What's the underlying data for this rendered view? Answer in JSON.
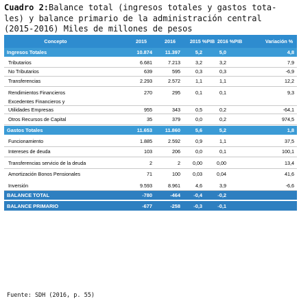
{
  "title": {
    "bold": "Cuadro 2:",
    "text": "Balance total (ingresos totales y gastos tota-les) y balance primario de la administración central (2015-2016) Miles de millones de pesos"
  },
  "header": {
    "concepto": "Concepto",
    "y2015": "2015",
    "y2016": "2016",
    "pib2015": "2015 %PIB",
    "pib2016": "2016 %PIB",
    "variacion": "Variación %"
  },
  "rows": [
    {
      "type": "sec",
      "label": "Ingresos Totales",
      "v": [
        "10.874",
        "11.397",
        "5,2",
        "5,0",
        "4,8"
      ]
    },
    {
      "type": "item",
      "label": "Tributarios",
      "v": [
        "6.681",
        "7.213",
        "3,2",
        "3,2",
        "7,9"
      ]
    },
    {
      "type": "item",
      "label": "No Tributarios",
      "v": [
        "639",
        "595",
        "0,3",
        "0,3",
        "-6,9"
      ]
    },
    {
      "type": "item",
      "label": "Transferencias",
      "v": [
        "2.293",
        "2.572",
        "1,1",
        "1,1",
        "12,2"
      ]
    },
    {
      "type": "item",
      "label": "Rendimientos Financieros",
      "v": [
        "270",
        "295",
        "0,1",
        "0,1",
        "9,3"
      ]
    },
    {
      "type": "item",
      "label": "Excedentes Financieros y",
      "v": [
        "",
        "",
        "",
        "",
        ""
      ]
    },
    {
      "type": "item",
      "label": "Utilidades Empresas",
      "v": [
        "955",
        "343",
        "0,5",
        "0,2",
        "-64,1"
      ]
    },
    {
      "type": "item",
      "label": "Otros Recursos de Capital",
      "v": [
        "35",
        "379",
        "0,0",
        "0,2",
        "974,5"
      ]
    },
    {
      "type": "sec",
      "label": "Gastos Totales",
      "v": [
        "11.653",
        "11.860",
        "5,6",
        "5,2",
        "1,8"
      ]
    },
    {
      "type": "item",
      "label": "Funcionamiento",
      "v": [
        "1.885",
        "2.592",
        "0,9",
        "1,1",
        "37,5"
      ]
    },
    {
      "type": "item",
      "label": "Intereses de deuda",
      "v": [
        "103",
        "206",
        "0,0",
        "0,1",
        "100,1"
      ]
    },
    {
      "type": "item",
      "label": "Transferencias servicio de la deuda",
      "v": [
        "2",
        "2",
        "0,00",
        "0,00",
        "13,4"
      ]
    },
    {
      "type": "item",
      "label": "Amortización Bonos Pensionales",
      "v": [
        "71",
        "100",
        "0,03",
        "0,04",
        "41,6"
      ]
    },
    {
      "type": "item",
      "label": "Inversión",
      "v": [
        "9.593",
        "8.961",
        "4,6",
        "3,9",
        "-6,6"
      ]
    },
    {
      "type": "bal",
      "label": "BALANCE TOTAL",
      "v": [
        "-780",
        "-464",
        "-0,4",
        "-0,2",
        ""
      ]
    },
    {
      "type": "bal",
      "label": "BALANCE PRIMARIO",
      "v": [
        "-677",
        "-258",
        "-0,3",
        "-0,1",
        ""
      ]
    }
  ],
  "source": "Fuente: SDH (2016, p. 55)",
  "colors": {
    "header": "#2e8ccf",
    "section": "#3b9bd6",
    "balance": "#2e7fc0"
  }
}
